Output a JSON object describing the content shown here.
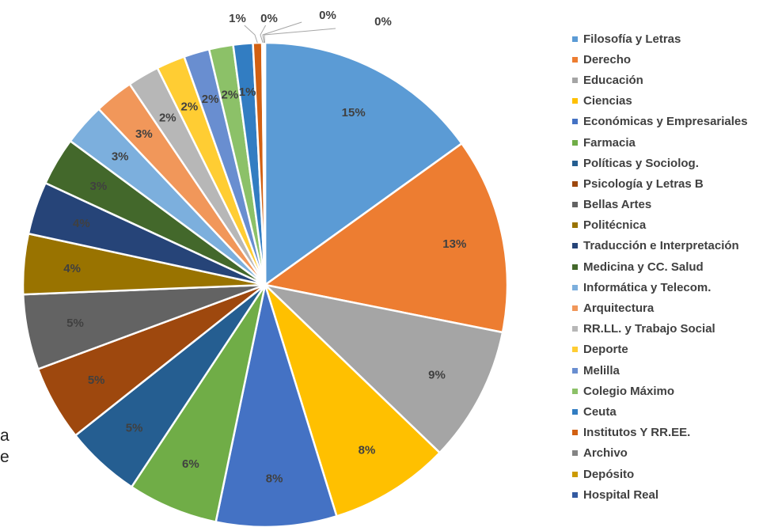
{
  "chart_data": {
    "type": "pie",
    "legend_position": "right",
    "series": [
      {
        "name": "Filosofía y Letras",
        "value": 15,
        "label": "15%",
        "color": "#5b9bd5"
      },
      {
        "name": "Derecho",
        "value": 13,
        "label": "13%",
        "color": "#ed7d31"
      },
      {
        "name": "Educación",
        "value": 9,
        "label": "9%",
        "color": "#a5a5a5"
      },
      {
        "name": "Ciencias",
        "value": 8,
        "label": "8%",
        "color": "#ffc000"
      },
      {
        "name": "Económicas y Empresariales",
        "value": 8,
        "label": "8%",
        "color": "#4472c4"
      },
      {
        "name": "Farmacia",
        "value": 6,
        "label": "6%",
        "color": "#70ad47"
      },
      {
        "name": "Políticas y Sociolog.",
        "value": 5,
        "label": "5%",
        "color": "#255e91"
      },
      {
        "name": "Psicología y Letras B",
        "value": 5,
        "label": "5%",
        "color": "#9e480e"
      },
      {
        "name": "Bellas Artes",
        "value": 5,
        "label": "5%",
        "color": "#636363"
      },
      {
        "name": "Politécnica",
        "value": 4,
        "label": "4%",
        "color": "#997300"
      },
      {
        "name": "Traducción e Interpretación",
        "value": 3.5,
        "label": "4%",
        "color": "#264478"
      },
      {
        "name": "Medicina y CC. Salud",
        "value": 3.2,
        "label": "3%",
        "color": "#43682b"
      },
      {
        "name": "Informática y Telecom.",
        "value": 2.8,
        "label": "3%",
        "color": "#7cafdd"
      },
      {
        "name": "Arquitectura",
        "value": 2.6,
        "label": "3%",
        "color": "#f1975a"
      },
      {
        "name": "RR.LL. y Trabajo Social",
        "value": 2.1,
        "label": "2%",
        "color": "#b7b7b7"
      },
      {
        "name": "Deporte",
        "value": 1.9,
        "label": "2%",
        "color": "#ffcd33"
      },
      {
        "name": "Melilla",
        "value": 1.7,
        "label": "2%",
        "color": "#698ed0"
      },
      {
        "name": "Colegio Máximo",
        "value": 1.6,
        "label": "2%",
        "color": "#8cc168"
      },
      {
        "name": "Ceuta",
        "value": 1.3,
        "label": "1%",
        "color": "#327dc2"
      },
      {
        "name": "Institutos Y RR.EE.",
        "value": 0.6,
        "label": "1%",
        "color": "#d26012"
      },
      {
        "name": "Archivo",
        "value": 0.1,
        "label": "0%",
        "color": "#848484"
      },
      {
        "name": "Depósito",
        "value": 0.05,
        "label": "0%",
        "color": "#cc9a00"
      },
      {
        "name": "Hospital Real",
        "value": 0.05,
        "label": "0%",
        "color": "#335aa1"
      }
    ]
  },
  "side_text": {
    "line1": "a",
    "line2": "e"
  }
}
